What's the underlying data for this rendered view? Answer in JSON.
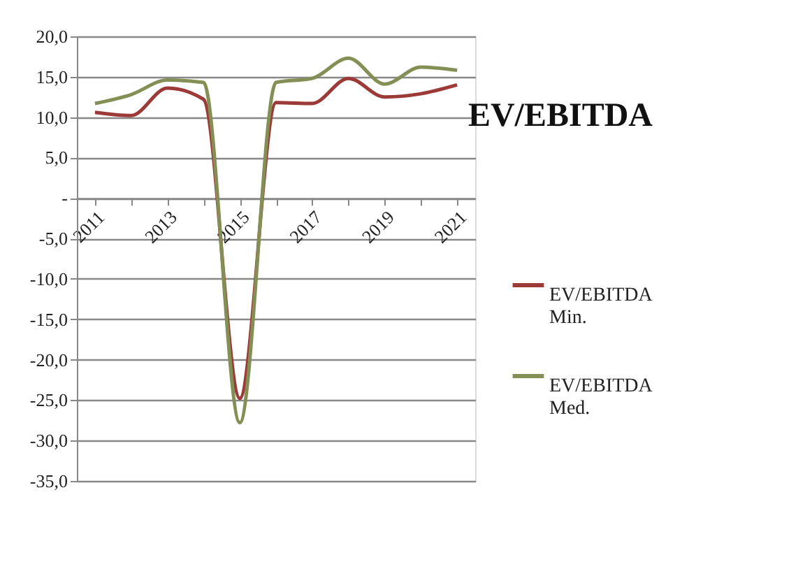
{
  "chart_data": {
    "type": "line",
    "title": "EV/EBITDA",
    "categories": [
      "2011",
      null,
      "2013",
      null,
      "2015",
      null,
      "2017",
      null,
      "2019",
      null,
      "2021"
    ],
    "series": [
      {
        "name": "EV/EBITDA Min.",
        "color": "#9b3a36",
        "values": [
          10.6,
          10.2,
          13.6,
          12.2,
          -24.8,
          11.8,
          11.7,
          14.8,
          12.5,
          12.9,
          14.0
        ]
      },
      {
        "name": "EV/EBITDA Med.",
        "color": "#838f55",
        "values": [
          11.7,
          12.8,
          14.6,
          14.3,
          -27.8,
          14.3,
          14.8,
          17.3,
          14.1,
          16.2,
          15.8
        ]
      }
    ],
    "ylim": [
      -35,
      20
    ],
    "yticks": [
      {
        "value": -35,
        "label": "-35,0"
      },
      {
        "value": -30,
        "label": "-30,0"
      },
      {
        "value": -25,
        "label": "-25,0"
      },
      {
        "value": -20,
        "label": "-20,0"
      },
      {
        "value": -15,
        "label": "-15,0"
      },
      {
        "value": -10,
        "label": "-10,0"
      },
      {
        "value": -5,
        "label": "-5,0"
      },
      {
        "value": 0,
        "label": "-"
      },
      {
        "value": 5,
        "label": "5,0"
      },
      {
        "value": 10,
        "label": "10,0"
      },
      {
        "value": 15,
        "label": "15,0"
      },
      {
        "value": 20,
        "label": "20,0"
      }
    ],
    "grid": "y",
    "legend": "right",
    "marker": "none",
    "line_style": "solid"
  }
}
